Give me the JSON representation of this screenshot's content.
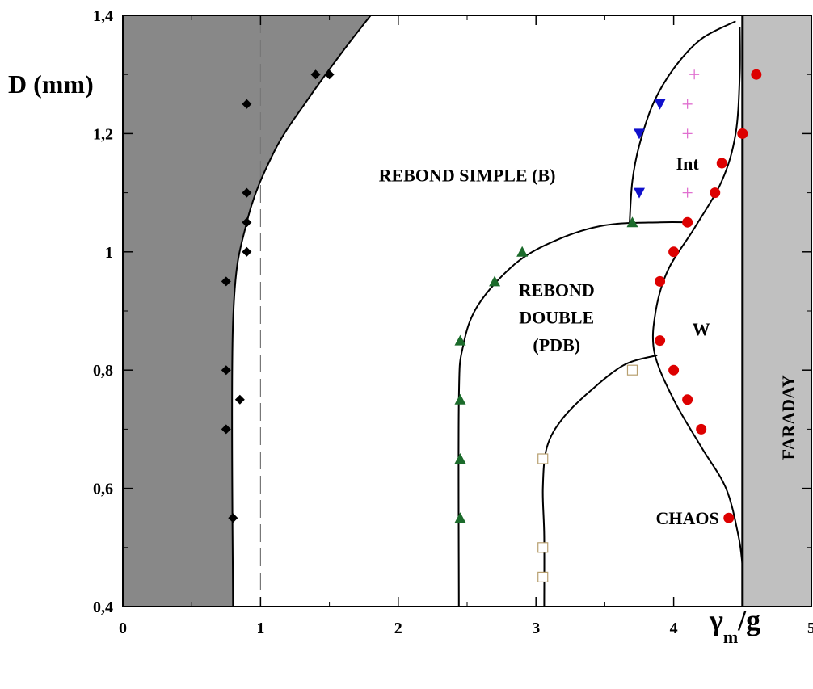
{
  "chart_data": {
    "type": "scatter",
    "title": "",
    "ylabel": "D (mm)",
    "xlabel": {
      "base": "γ",
      "sub": "m",
      "tail": "/g"
    },
    "xlim": [
      0,
      5
    ],
    "ylim": [
      0.4,
      1.4
    ],
    "x_ticks": [
      {
        "v": 0,
        "label": "0"
      },
      {
        "v": 1,
        "label": "1"
      },
      {
        "v": 2,
        "label": "2"
      },
      {
        "v": 3,
        "label": "3"
      },
      {
        "v": 4,
        "label": "4"
      },
      {
        "v": 5,
        "label": "5"
      }
    ],
    "y_ticks": [
      {
        "v": 0.4,
        "label": "0,4"
      },
      {
        "v": 0.6,
        "label": "0,6"
      },
      {
        "v": 0.8,
        "label": "0,8"
      },
      {
        "v": 1.0,
        "label": "1"
      },
      {
        "v": 1.2,
        "label": "1,2"
      },
      {
        "v": 1.4,
        "label": "1,4"
      }
    ],
    "dashed_line_x": 1.0,
    "faraday_threshold_x": 4.5,
    "colors": {
      "no_bounce_region": "#888888",
      "faraday_region": "#c0c0c0",
      "bounce": "#000000",
      "double_bounce": "#1b6b2b",
      "intermittent_boundary": "#1010cc",
      "intermittent": "#e070d0",
      "chaos": "#b8a070",
      "walker": "#dd0000"
    },
    "regions": [
      {
        "name": "rebond_simple",
        "label": "REBOND SIMPLE (B)",
        "x": 2.5,
        "y": 1.13
      },
      {
        "name": "rebond_double",
        "label": [
          "REBOND",
          "DOUBLE",
          "(PDB)"
        ],
        "x": 3.15,
        "y": 0.89
      },
      {
        "name": "int",
        "label": "Int",
        "x": 4.1,
        "y": 1.15
      },
      {
        "name": "w",
        "label": "W",
        "x": 4.2,
        "y": 0.87
      },
      {
        "name": "chaos",
        "label": "CHAOS",
        "x": 4.1,
        "y": 0.55
      },
      {
        "name": "faraday",
        "label": "FARADAY",
        "x": 4.83,
        "y": 0.72,
        "rotate": -90
      }
    ],
    "series": [
      {
        "marker": "diamond",
        "color": "#000000",
        "x": [
          0.8,
          0.75,
          0.85,
          0.75,
          0.75,
          0.9,
          0.9,
          0.9,
          0.9,
          1.4,
          1.5
        ],
        "y": [
          0.55,
          0.7,
          0.75,
          0.8,
          0.95,
          1.0,
          1.05,
          1.1,
          1.25,
          1.3,
          1.3
        ]
      },
      {
        "marker": "triangle-up",
        "color": "#1b6b2b",
        "x": [
          2.45,
          2.45,
          2.45,
          2.45,
          2.7,
          2.9,
          3.7
        ],
        "y": [
          0.55,
          0.65,
          0.75,
          0.85,
          0.95,
          1.0,
          1.05
        ]
      },
      {
        "marker": "triangle-down",
        "color": "#1010cc",
        "x": [
          3.75,
          3.75,
          3.9
        ],
        "y": [
          1.1,
          1.2,
          1.25
        ]
      },
      {
        "marker": "plus",
        "color": "#e070d0",
        "x": [
          4.1,
          4.1,
          4.1,
          4.15
        ],
        "y": [
          1.1,
          1.2,
          1.25,
          1.3
        ]
      },
      {
        "marker": "square-open",
        "color": "#b8a070",
        "x": [
          3.05,
          3.05,
          3.05,
          3.7
        ],
        "y": [
          0.45,
          0.5,
          0.65,
          0.8
        ]
      },
      {
        "marker": "circle",
        "color": "#dd0000",
        "x": [
          4.4,
          4.2,
          4.1,
          4.0,
          3.9,
          3.9,
          4.0,
          4.1,
          4.3,
          4.35,
          4.5,
          4.6
        ],
        "y": [
          0.55,
          0.7,
          0.75,
          0.8,
          0.85,
          0.95,
          1.0,
          1.05,
          1.1,
          1.15,
          1.2,
          1.3
        ]
      }
    ],
    "curves": [
      {
        "name": "no-bounce-threshold",
        "points": [
          [
            0.8,
            0.4
          ],
          [
            0.8,
            0.88
          ],
          [
            0.9,
            1.05
          ],
          [
            1.1,
            1.17
          ],
          [
            1.35,
            1.26
          ],
          [
            1.6,
            1.34
          ],
          [
            1.8,
            1.4
          ]
        ]
      },
      {
        "name": "double-bounce-threshold",
        "points": [
          [
            2.44,
            0.4
          ],
          [
            2.44,
            0.75
          ],
          [
            2.47,
            0.84
          ],
          [
            2.58,
            0.91
          ],
          [
            2.85,
            0.98
          ],
          [
            3.15,
            1.02
          ],
          [
            3.5,
            1.045
          ],
          [
            3.9,
            1.05
          ],
          [
            4.1,
            1.05
          ]
        ]
      },
      {
        "name": "chaos-threshold",
        "points": [
          [
            3.06,
            0.4
          ],
          [
            3.06,
            0.52
          ],
          [
            3.05,
            0.6
          ],
          [
            3.08,
            0.67
          ],
          [
            3.2,
            0.72
          ],
          [
            3.42,
            0.77
          ],
          [
            3.65,
            0.81
          ],
          [
            3.88,
            0.825
          ]
        ]
      },
      {
        "name": "intermittency-threshold",
        "points": [
          [
            3.68,
            1.05
          ],
          [
            3.7,
            1.12
          ],
          [
            3.75,
            1.18
          ],
          [
            3.85,
            1.25
          ],
          [
            4.0,
            1.31
          ],
          [
            4.2,
            1.36
          ],
          [
            4.45,
            1.39
          ]
        ]
      },
      {
        "name": "walker-threshold",
        "points": [
          [
            4.5,
            0.47
          ],
          [
            4.47,
            0.52
          ],
          [
            4.38,
            0.6
          ],
          [
            4.2,
            0.67
          ],
          [
            4.0,
            0.75
          ],
          [
            3.86,
            0.83
          ],
          [
            3.87,
            0.9
          ],
          [
            3.96,
            0.97
          ],
          [
            4.15,
            1.04
          ],
          [
            4.35,
            1.12
          ],
          [
            4.45,
            1.2
          ],
          [
            4.48,
            1.3
          ],
          [
            4.48,
            1.38
          ]
        ]
      }
    ]
  }
}
